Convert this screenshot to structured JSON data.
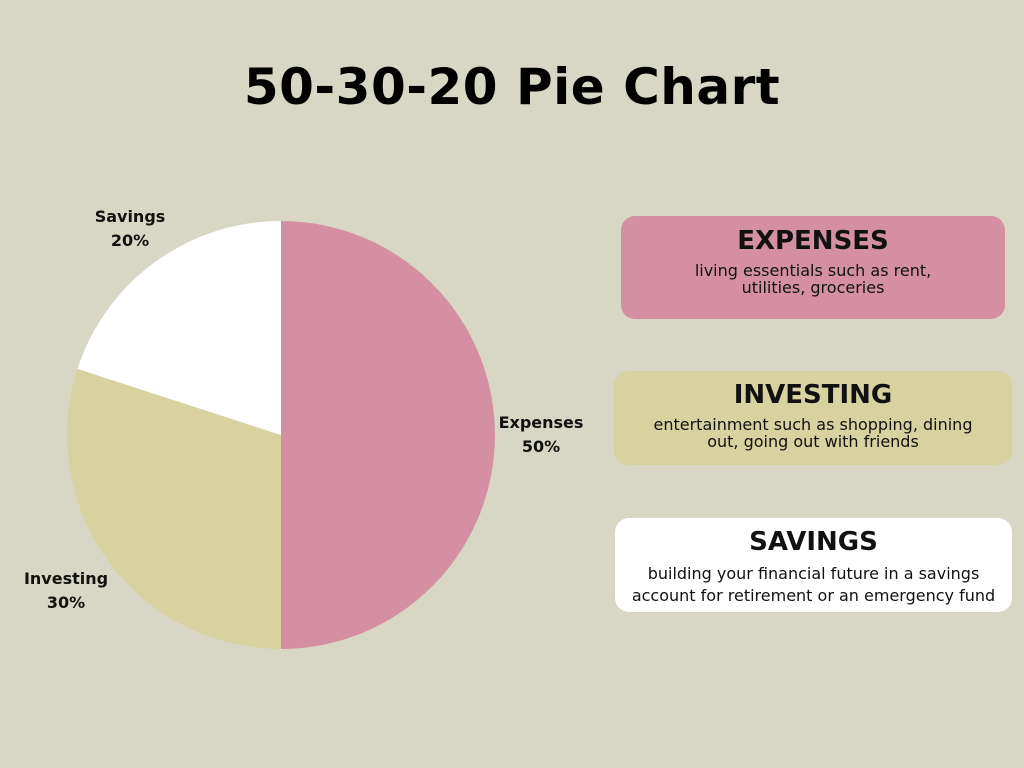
{
  "title": "50-30-20 Pie Chart",
  "chart_data": {
    "type": "pie",
    "title": "50-30-20 Pie Chart",
    "slices": [
      {
        "name": "Expenses",
        "value": 50,
        "label": "50%",
        "color": "#d490a2"
      },
      {
        "name": "Investing",
        "value": 30,
        "label": "30%",
        "color": "#d7d29f"
      },
      {
        "name": "Savings",
        "value": 20,
        "label": "20%",
        "color": "#ffffff"
      }
    ]
  },
  "cards": [
    {
      "title": "EXPENSES",
      "description": "living essentials such as rent, utilities, groceries",
      "color": "#d490a2"
    },
    {
      "title": "INVESTING",
      "description": "entertainment such as shopping, dining out, going out with friends",
      "color": "#d7d29f"
    },
    {
      "title": "SAVINGS",
      "description": "building your financial future in a savings account for retirement or an emergency fund",
      "color": "#ffffff"
    }
  ]
}
